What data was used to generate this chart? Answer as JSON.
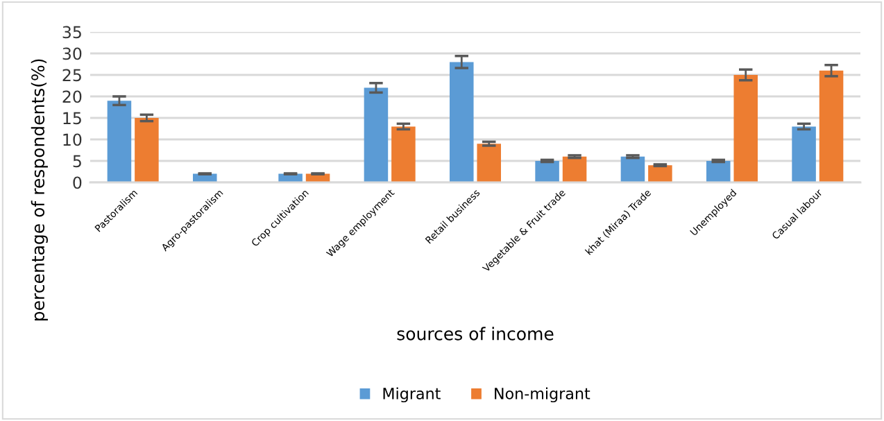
{
  "chart_data": {
    "type": "bar",
    "xlabel": "sources of income",
    "ylabel": "percentage of respondents(%)",
    "categories": [
      "Pastoralism",
      "Agro-pastoralism",
      "Crop cultivation",
      "Wage employment",
      "Retail business",
      "Vegetable & Fruit trade",
      "khat (Miraa) Trade",
      "Unemployed",
      "Casual labour"
    ],
    "series": [
      {
        "name": "Migrant",
        "color": "#5b9bd5",
        "values": [
          19,
          2,
          2,
          22,
          28,
          5,
          6,
          5,
          13
        ],
        "errors": [
          1,
          0.1,
          0.1,
          1.1,
          1.4,
          0.25,
          0.3,
          0.25,
          0.65
        ]
      },
      {
        "name": "Non-migrant",
        "color": "#ed7d31",
        "values": [
          15,
          null,
          2,
          13,
          9,
          6,
          4,
          25,
          26
        ],
        "errors": [
          0.75,
          null,
          0.1,
          0.65,
          0.45,
          0.3,
          0.2,
          1.25,
          1.3
        ]
      }
    ],
    "ylim": [
      0,
      35
    ],
    "yticks": [
      0,
      5,
      10,
      15,
      20,
      25,
      30,
      35
    ],
    "grid": "y",
    "legend": "bottom"
  }
}
